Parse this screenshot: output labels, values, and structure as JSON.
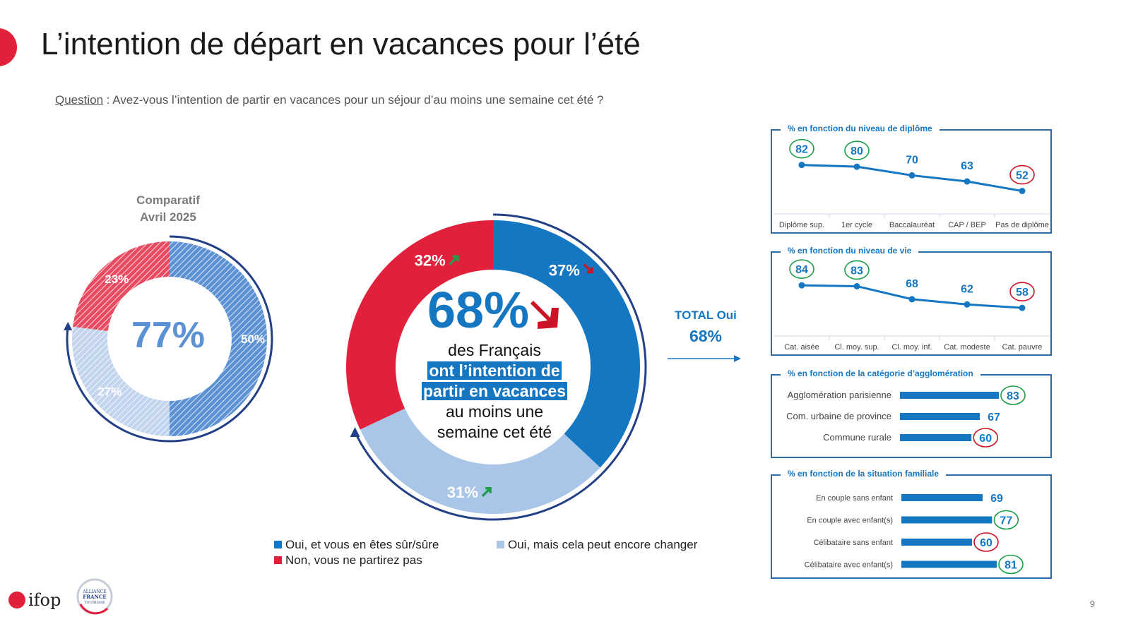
{
  "title": "L’intention de départ en vacances pour l’été",
  "question": {
    "label": "Question",
    "text": " : Avez-vous l’intention de partir en vacances pour un séjour d’au moins une semaine cet été ?"
  },
  "comparatif": {
    "line1": "Comparatif",
    "line2": "Avril 2025"
  },
  "colors": {
    "blue": "#1577c2",
    "lightblue": "#a9c6e9",
    "red": "#e1213b",
    "navy": "#233f86",
    "green": "#1e9e48",
    "darkred": "#cc1427"
  },
  "center": {
    "big": "68%",
    "line1": "des Français",
    "hl1": "ont l’intention de",
    "hl2": "partir en vacances",
    "line2": "au moins une",
    "line3": "semaine cet été"
  },
  "total": {
    "label": "TOTAL Oui",
    "value": "68%"
  },
  "legend": {
    "oui_sur": "Oui, et vous en êtes sûr/sûre",
    "oui_changer": "Oui, mais cela peut encore changer",
    "non": "Non, vous ne partirez pas"
  },
  "chart_data": [
    {
      "type": "pie",
      "name": "Comparatif Avril 2025",
      "title": "Comparatif Avril 2025",
      "center_label": "77%",
      "categories": [
        "Oui, et vous en êtes sûr/sûre",
        "Oui, mais cela peut encore changer",
        "Non, vous ne partirez pas"
      ],
      "values": [
        50,
        27,
        23
      ],
      "labels": [
        "50%",
        "27%",
        "23%"
      ]
    },
    {
      "type": "pie",
      "name": "Intention de départ été",
      "center_label": "68%",
      "categories": [
        "Oui, et vous en êtes sûr/sûre",
        "Oui, mais cela peut encore changer",
        "Non, vous ne partirez pas"
      ],
      "values": [
        37,
        31,
        32
      ],
      "labels": [
        "37%",
        "31%",
        "32%"
      ],
      "trends": [
        "down",
        "up",
        "up"
      ]
    },
    {
      "type": "line",
      "title": "% en fonction du niveau de diplôme",
      "categories": [
        "Diplôme sup.",
        "1er cycle",
        "Baccalauréat",
        "CAP / BEP",
        "Pas de diplôme"
      ],
      "values": [
        82,
        80,
        70,
        63,
        52
      ],
      "highlight": [
        "high",
        "high",
        "none",
        "none",
        "low"
      ]
    },
    {
      "type": "line",
      "title": "% en fonction du niveau de vie",
      "categories": [
        "Cat. aisée",
        "Cl. moy. sup.",
        "Cl. moy. inf.",
        "Cat. modeste",
        "Cat. pauvre"
      ],
      "values": [
        84,
        83,
        68,
        62,
        58
      ],
      "highlight": [
        "high",
        "high",
        "none",
        "none",
        "low"
      ]
    },
    {
      "type": "bar",
      "title": "% en fonction de la catégorie d’agglomération",
      "categories": [
        "Agglomération parisienne",
        "Com. urbaine de province",
        "Commune rurale"
      ],
      "values": [
        83,
        67,
        60
      ],
      "highlight": [
        "high",
        "none",
        "low"
      ]
    },
    {
      "type": "bar",
      "title": "% en fonction de la situation familiale",
      "categories": [
        "En couple sans enfant",
        "En couple avec enfant(s)",
        "Célibataire sans enfant",
        "Célibataire avec enfant(s)"
      ],
      "values": [
        69,
        77,
        60,
        81
      ],
      "highlight": [
        "none",
        "high",
        "low",
        "high"
      ]
    }
  ],
  "logos": {
    "ifop": "ifop",
    "alliance1": "ALLIANCE",
    "alliance2": "FRANCE",
    "alliance3": "TOURISME"
  },
  "page_number": "9"
}
